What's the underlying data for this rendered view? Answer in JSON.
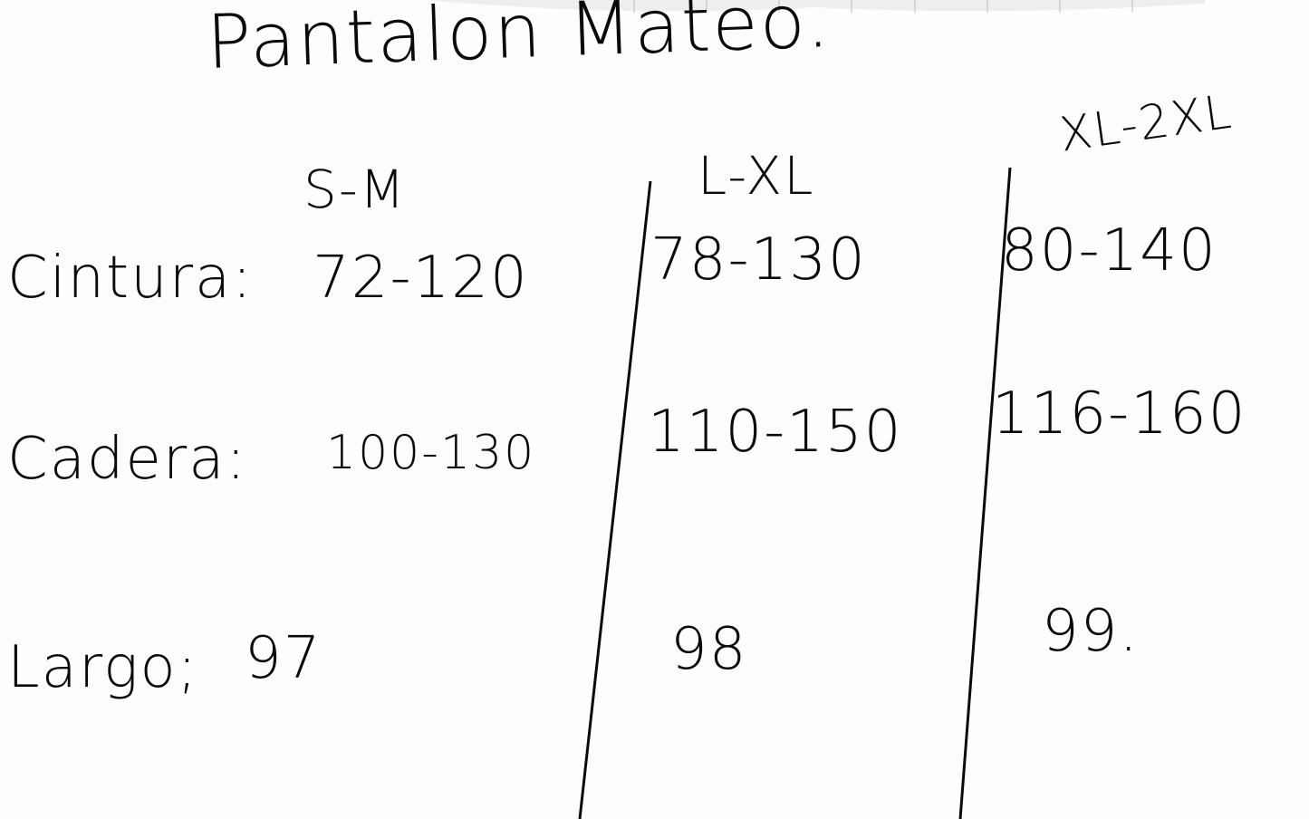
{
  "title": "Pantalon Mateo.",
  "columns": [
    "S-M",
    "L-XL",
    "XL-2XL"
  ],
  "rows": [
    {
      "label": "Cintura:",
      "values": [
        "72-120",
        "78-130",
        "80-140"
      ]
    },
    {
      "label": "Cadera:",
      "values": [
        "100-130",
        "110-150",
        "116-160"
      ]
    },
    {
      "label": "Largo;",
      "values": [
        "97",
        "98",
        "99."
      ]
    }
  ],
  "ink_color": "#0a0a0a",
  "paper_color": "#fdfdfd"
}
